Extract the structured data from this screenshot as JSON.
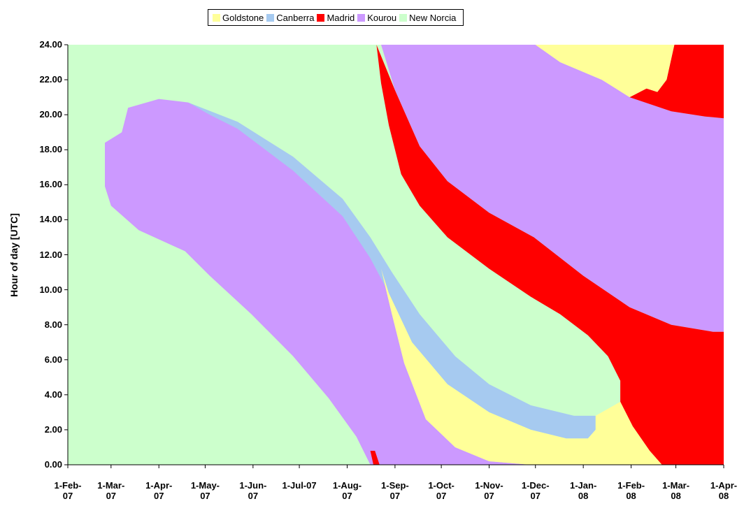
{
  "chart_data": {
    "type": "region",
    "y_label": "Hour of day [UTC]",
    "xlim": [
      "2007-02-01",
      "2008-04-01"
    ],
    "xticks": [
      {
        "value": "2007-02-01",
        "label": "1-Feb-07"
      },
      {
        "value": "2007-03-01",
        "label": "1-Mar-07"
      },
      {
        "value": "2007-04-01",
        "label": "1-Apr-07"
      },
      {
        "value": "2007-05-01",
        "label": "1-May-07"
      },
      {
        "value": "2007-06-01",
        "label": "1-Jun-07"
      },
      {
        "value": "2007-07-01",
        "label": "1-Jul-07"
      },
      {
        "value": "2007-08-01",
        "label": "1-Aug-07"
      },
      {
        "value": "2007-09-01",
        "label": "1-Sep-07"
      },
      {
        "value": "2007-10-01",
        "label": "1-Oct-07"
      },
      {
        "value": "2007-11-01",
        "label": "1-Nov-07"
      },
      {
        "value": "2007-12-01",
        "label": "1-Dec-07"
      },
      {
        "value": "2008-01-01",
        "label": "1-Jan-08"
      },
      {
        "value": "2008-02-01",
        "label": "1-Feb-08"
      },
      {
        "value": "2008-03-01",
        "label": "1-Mar-08"
      },
      {
        "value": "2008-04-01",
        "label": "1-Apr-08"
      }
    ],
    "ylim": [
      0,
      24
    ],
    "yticks": [
      {
        "value": 0,
        "label": "0.00"
      },
      {
        "value": 2,
        "label": "2.00"
      },
      {
        "value": 4,
        "label": "4.00"
      },
      {
        "value": 6,
        "label": "6.00"
      },
      {
        "value": 8,
        "label": "8.00"
      },
      {
        "value": 10,
        "label": "10.00"
      },
      {
        "value": 12,
        "label": "12.00"
      },
      {
        "value": 14,
        "label": "14.00"
      },
      {
        "value": 16,
        "label": "16.00"
      },
      {
        "value": 18,
        "label": "18.00"
      },
      {
        "value": 20,
        "label": "20.00"
      },
      {
        "value": 22,
        "label": "22.00"
      },
      {
        "value": 24,
        "label": "24.00"
      }
    ],
    "legend": "top",
    "series": [
      {
        "name": "Goldstone",
        "color": "#ffff99",
        "polygons": [
          [
            [
              "2007-08-23",
              11.2
            ],
            [
              "2007-08-28",
              9.8
            ],
            [
              "2007-09-12",
              7.0
            ],
            [
              "2007-10-05",
              4.6
            ],
            [
              "2007-11-01",
              3.0
            ],
            [
              "2007-11-28",
              2.0
            ],
            [
              "2007-12-21",
              1.5
            ],
            [
              "2008-01-04",
              1.5
            ],
            [
              "2008-01-09",
              2.0
            ],
            [
              "2008-01-09",
              2.8
            ],
            [
              "2008-01-17",
              3.2
            ],
            [
              "2008-01-25",
              3.6
            ],
            [
              "2008-02-02",
              2.2
            ],
            [
              "2008-02-13",
              0.8
            ],
            [
              "2008-02-21",
              0
            ],
            [
              "2007-11-28",
              0
            ],
            [
              "2007-11-01",
              0.2
            ],
            [
              "2007-10-10",
              1.0
            ],
            [
              "2007-09-21",
              2.6
            ],
            [
              "2007-09-07",
              5.8
            ],
            [
              "2007-08-30",
              8.6
            ]
          ],
          [
            [
              "2007-12-01",
              24
            ],
            [
              "2008-02-29",
              24
            ],
            [
              "2008-02-24",
              22.0
            ],
            [
              "2008-02-18",
              21.3
            ],
            [
              "2008-02-11",
              21.5
            ],
            [
              "2008-01-31",
              21.0
            ],
            [
              "2008-01-13",
              22.0
            ],
            [
              "2007-12-17",
              23.0
            ]
          ]
        ]
      },
      {
        "name": "Canberra",
        "color": "#a6caf0",
        "polygons": [
          [
            [
              "2007-04-20",
              20.7
            ],
            [
              "2007-05-22",
              19.6
            ],
            [
              "2007-06-27",
              17.6
            ],
            [
              "2007-07-29",
              15.2
            ],
            [
              "2007-08-16",
              13.0
            ],
            [
              "2007-08-30",
              11.0
            ],
            [
              "2007-09-17",
              8.6
            ],
            [
              "2007-10-10",
              6.2
            ],
            [
              "2007-11-01",
              4.6
            ],
            [
              "2007-11-28",
              3.4
            ],
            [
              "2007-12-26",
              2.8
            ],
            [
              "2008-01-09",
              2.8
            ],
            [
              "2008-01-09",
              2.0
            ],
            [
              "2008-01-04",
              1.5
            ],
            [
              "2007-12-21",
              1.5
            ],
            [
              "2007-11-28",
              2.0
            ],
            [
              "2007-11-01",
              3.0
            ],
            [
              "2007-10-05",
              4.6
            ],
            [
              "2007-09-12",
              7.0
            ],
            [
              "2007-08-28",
              9.8
            ],
            [
              "2007-08-16",
              11.8
            ],
            [
              "2007-07-29",
              14.2
            ],
            [
              "2007-06-27",
              16.8
            ],
            [
              "2007-05-22",
              19.2
            ],
            [
              "2007-05-04",
              20.0
            ]
          ]
        ]
      },
      {
        "name": "Madrid",
        "color": "#ff0000",
        "polygons": [
          [
            [
              "2007-08-20",
              24
            ],
            [
              "2007-09-01",
              21.4
            ],
            [
              "2007-09-17",
              18.2
            ],
            [
              "2007-10-05",
              16.2
            ],
            [
              "2007-11-01",
              14.4
            ],
            [
              "2007-11-30",
              13.0
            ],
            [
              "2008-01-01",
              10.8
            ],
            [
              "2008-01-31",
              9.0
            ],
            [
              "2008-02-27",
              8.0
            ],
            [
              "2008-03-25",
              7.6
            ],
            [
              "2008-04-01",
              7.6
            ],
            [
              "2008-04-01",
              0
            ],
            [
              "2008-02-21",
              0
            ],
            [
              "2008-02-13",
              0.8
            ],
            [
              "2008-02-02",
              2.2
            ],
            [
              "2008-01-25",
              3.6
            ],
            [
              "2008-01-25",
              4.8
            ],
            [
              "2008-01-17",
              6.2
            ],
            [
              "2008-01-04",
              7.4
            ],
            [
              "2007-12-17",
              8.6
            ],
            [
              "2007-11-28",
              9.6
            ],
            [
              "2007-11-01",
              11.2
            ],
            [
              "2007-10-05",
              13.0
            ],
            [
              "2007-09-17",
              14.8
            ],
            [
              "2007-09-05",
              16.6
            ],
            [
              "2007-08-28",
              19.4
            ],
            [
              "2007-08-23",
              21.8
            ]
          ],
          [
            [
              "2007-08-16",
              0.8
            ],
            [
              "2007-08-19",
              0.8
            ],
            [
              "2007-08-22",
              0
            ],
            [
              "2007-08-18",
              0
            ]
          ],
          [
            [
              "2008-01-31",
              21.0
            ],
            [
              "2008-02-11",
              21.5
            ],
            [
              "2008-02-18",
              21.3
            ],
            [
              "2008-02-24",
              22.0
            ],
            [
              "2008-02-29",
              24
            ],
            [
              "2008-04-01",
              24
            ],
            [
              "2008-04-01",
              19.8
            ],
            [
              "2008-03-20",
              19.9
            ],
            [
              "2008-02-27",
              20.2
            ]
          ]
        ]
      },
      {
        "name": "Kourou",
        "color": "#cc99ff",
        "polygons": [
          [
            [
              "2007-02-25",
              15.9
            ],
            [
              "2007-02-25",
              18.4
            ],
            [
              "2007-03-08",
              19.0
            ],
            [
              "2007-03-12",
              20.4
            ],
            [
              "2007-04-01",
              20.9
            ],
            [
              "2007-04-20",
              20.7
            ],
            [
              "2007-05-17",
              19.6
            ],
            [
              "2007-06-18",
              17.8
            ],
            [
              "2007-07-15",
              15.8
            ],
            [
              "2007-08-02",
              13.8
            ],
            [
              "2007-08-16",
              12.2
            ],
            [
              "2007-08-23",
              11.2
            ],
            [
              "2007-08-30",
              8.6
            ],
            [
              "2007-09-07",
              5.8
            ],
            [
              "2007-09-21",
              2.6
            ],
            [
              "2007-10-10",
              1.0
            ],
            [
              "2007-11-01",
              0.2
            ],
            [
              "2007-11-28",
              0
            ],
            [
              "2007-08-16",
              0
            ],
            [
              "2007-08-07",
              1.6
            ],
            [
              "2007-07-20",
              3.8
            ],
            [
              "2007-06-27",
              6.2
            ],
            [
              "2007-05-31",
              8.6
            ],
            [
              "2007-05-04",
              10.8
            ],
            [
              "2007-04-18",
              12.2
            ],
            [
              "2007-03-19",
              13.4
            ],
            [
              "2007-03-01",
              14.8
            ]
          ],
          [
            [
              "2007-08-23",
              24
            ],
            [
              "2007-12-01",
              24
            ],
            [
              "2007-12-17",
              23.0
            ],
            [
              "2008-01-13",
              22.0
            ],
            [
              "2008-02-02",
              21.0
            ],
            [
              "2008-02-27",
              20.2
            ],
            [
              "2008-03-20",
              19.9
            ],
            [
              "2008-04-01",
              19.8
            ],
            [
              "2008-04-01",
              7.6
            ],
            [
              "2008-03-25",
              7.6
            ],
            [
              "2008-02-27",
              8.0
            ],
            [
              "2008-01-31",
              9.0
            ],
            [
              "2008-01-01",
              10.8
            ],
            [
              "2007-11-30",
              13.0
            ],
            [
              "2007-11-01",
              14.4
            ],
            [
              "2007-10-05",
              16.2
            ],
            [
              "2007-09-17",
              18.2
            ],
            [
              "2007-09-01",
              21.4
            ]
          ]
        ]
      },
      {
        "name": "New Norcia",
        "color": "#ccffcc",
        "polygons": [
          [
            [
              "2007-02-01",
              0
            ],
            [
              "2007-02-01",
              24
            ],
            [
              "2008-04-01",
              24
            ],
            [
              "2008-04-01",
              0
            ]
          ]
        ]
      }
    ]
  }
}
